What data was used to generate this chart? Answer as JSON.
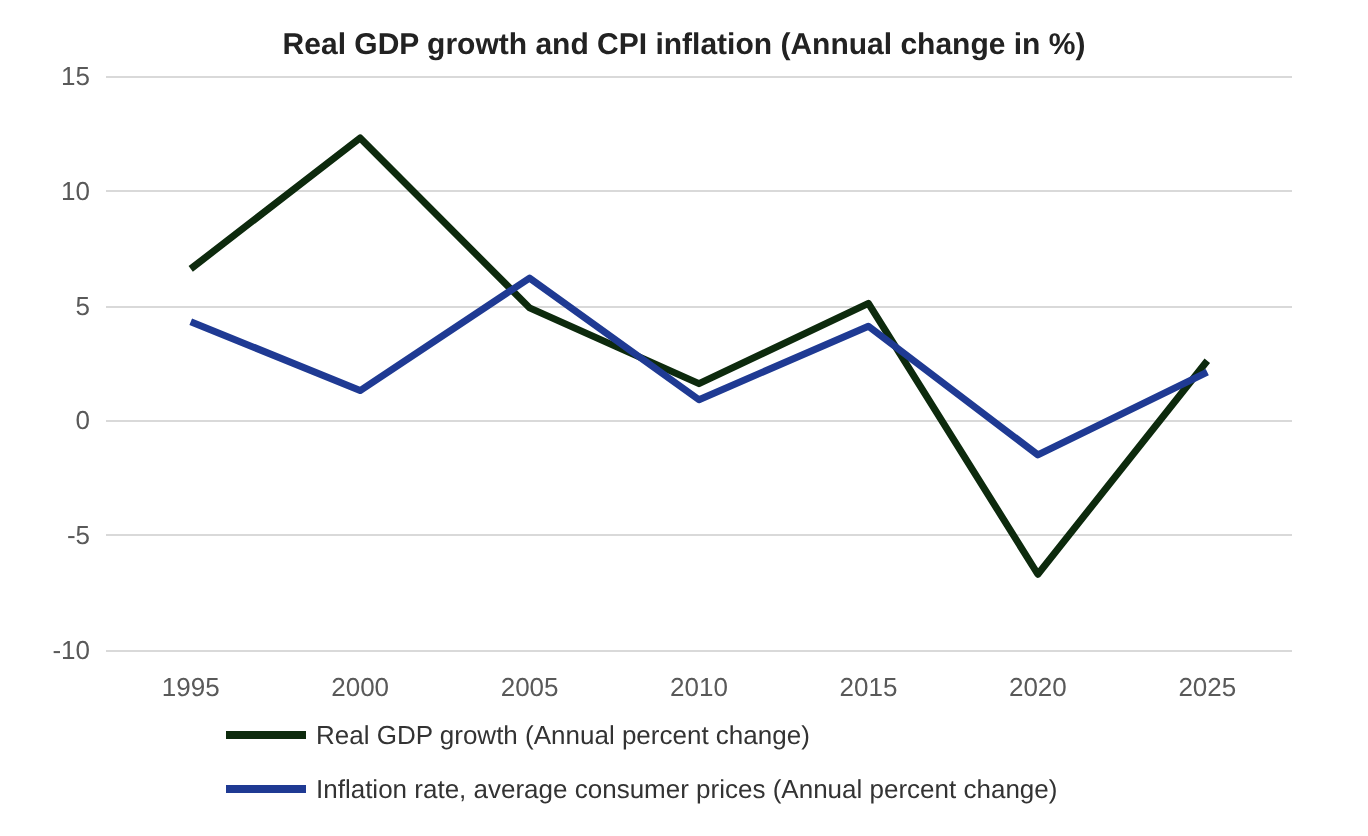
{
  "chart_data": {
    "type": "line",
    "title": "Real GDP growth and CPI inflation (Annual change in %)",
    "categories": [
      "1995",
      "2000",
      "2005",
      "2010",
      "2015",
      "2020",
      "2025"
    ],
    "series": [
      {
        "name": "Real GDP growth (Annual percent change)",
        "color": "#0d2a0d",
        "values": [
          6.6,
          12.3,
          4.9,
          1.6,
          5.1,
          -6.7,
          2.6
        ]
      },
      {
        "name": "Inflation rate, average consumer prices (Annual percent change)",
        "color": "#1f3a93",
        "values": [
          4.3,
          1.3,
          6.2,
          0.9,
          4.1,
          -1.5,
          2.1
        ]
      }
    ],
    "ylim": [
      -10,
      15
    ],
    "yticks": [
      -10,
      -5,
      0,
      5,
      10,
      15
    ],
    "grid": "y",
    "legend": "bottom",
    "marker": "none",
    "line_style": "solid"
  }
}
